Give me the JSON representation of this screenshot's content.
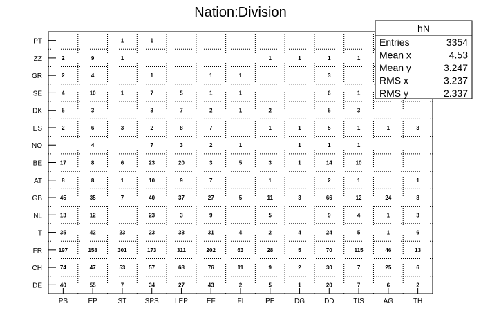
{
  "chart_data": {
    "type": "table",
    "title": "Nation:Division",
    "xlabel": "",
    "ylabel": "",
    "x_categories": [
      "PS",
      "EP",
      "ST",
      "SPS",
      "LEP",
      "EF",
      "FI",
      "PE",
      "DG",
      "DD",
      "TIS",
      "AG",
      "TH"
    ],
    "y_categories": [
      "DE",
      "CH",
      "FR",
      "IT",
      "NL",
      "GB",
      "AT",
      "BE",
      "NO",
      "ES",
      "DK",
      "SE",
      "GR",
      "ZZ",
      "PT"
    ],
    "grid": true,
    "rows": [
      [
        40,
        55,
        7,
        34,
        27,
        43,
        2,
        5,
        1,
        20,
        7,
        6,
        2
      ],
      [
        74,
        47,
        53,
        57,
        68,
        76,
        11,
        9,
        2,
        30,
        7,
        25,
        6
      ],
      [
        197,
        158,
        301,
        173,
        311,
        202,
        63,
        28,
        5,
        70,
        115,
        46,
        13
      ],
      [
        35,
        42,
        23,
        23,
        33,
        31,
        4,
        2,
        4,
        24,
        5,
        1,
        6
      ],
      [
        13,
        12,
        null,
        23,
        3,
        9,
        null,
        5,
        null,
        9,
        4,
        1,
        3
      ],
      [
        45,
        35,
        7,
        40,
        37,
        27,
        5,
        11,
        3,
        66,
        12,
        24,
        8
      ],
      [
        8,
        8,
        1,
        10,
        9,
        7,
        null,
        1,
        null,
        2,
        1,
        null,
        1
      ],
      [
        17,
        8,
        6,
        23,
        20,
        3,
        5,
        3,
        1,
        14,
        10,
        null,
        null
      ],
      [
        null,
        4,
        null,
        7,
        3,
        2,
        1,
        null,
        1,
        1,
        1,
        null,
        null
      ],
      [
        2,
        6,
        3,
        2,
        8,
        7,
        null,
        1,
        1,
        5,
        1,
        1,
        3
      ],
      [
        5,
        3,
        null,
        3,
        7,
        2,
        1,
        2,
        null,
        5,
        3,
        null,
        null
      ],
      [
        4,
        10,
        1,
        7,
        5,
        1,
        1,
        null,
        null,
        6,
        1,
        null,
        null
      ],
      [
        2,
        4,
        null,
        1,
        null,
        1,
        1,
        null,
        null,
        3,
        null,
        null,
        null
      ],
      [
        2,
        9,
        1,
        null,
        null,
        null,
        null,
        1,
        1,
        1,
        1,
        null,
        null
      ],
      [
        null,
        null,
        1,
        1,
        null,
        null,
        null,
        null,
        null,
        null,
        null,
        null,
        null
      ]
    ]
  },
  "stats_box": {
    "name": "hN",
    "rows": [
      {
        "label": "Entries",
        "value": "3354"
      },
      {
        "label": "Mean x",
        "value": "4.53"
      },
      {
        "label": "Mean y",
        "value": "3.247"
      },
      {
        "label": "RMS x",
        "value": "3.237"
      },
      {
        "label": "RMS y",
        "value": "2.337"
      }
    ]
  }
}
